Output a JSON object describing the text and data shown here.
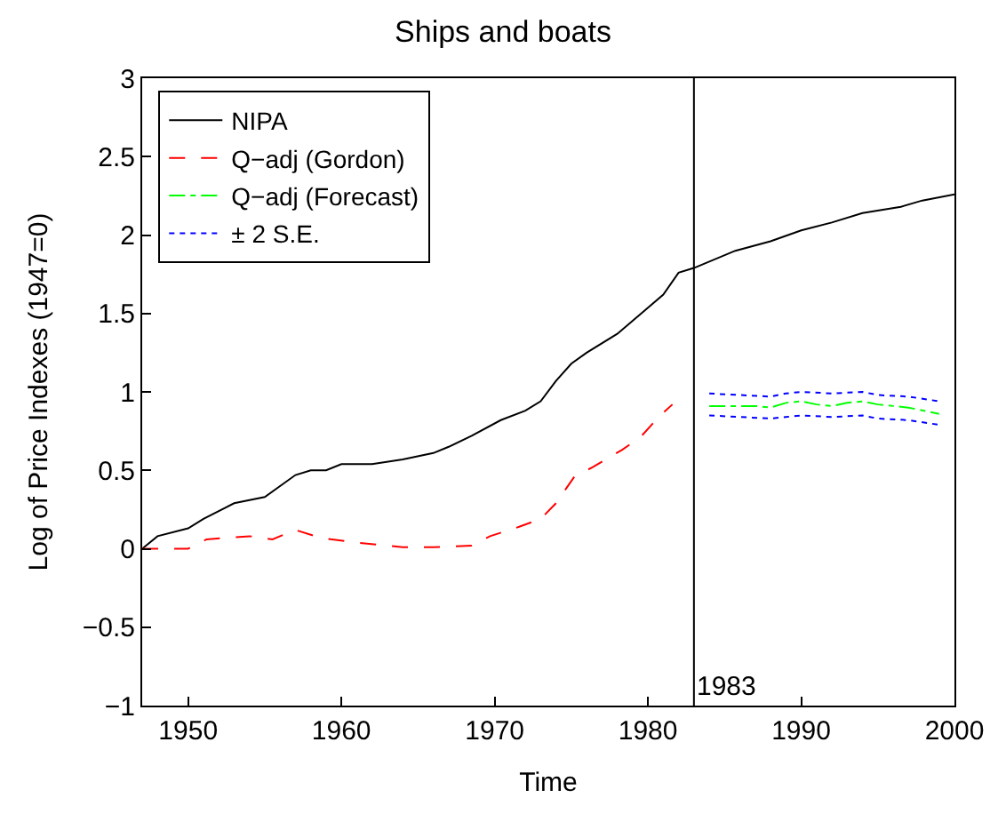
{
  "chart_data": {
    "type": "line",
    "title": "Ships and boats",
    "xlabel": "Time",
    "ylabel": "Log of Price Indexes (1947=0)",
    "xlim": [
      1947,
      2000
    ],
    "xticks": [
      1950,
      1960,
      1970,
      1980,
      1990,
      2000
    ],
    "ylim": [
      -1,
      3
    ],
    "yticks": [
      {
        "value": -1,
        "label": "−1"
      },
      {
        "value": -0.5,
        "label": "−0.5"
      },
      0,
      0.5,
      1,
      1.5,
      2,
      2.5,
      3
    ],
    "legend": "top left",
    "marker": "none",
    "ref_lines": [
      {
        "axis": "x",
        "value": 1983,
        "label": "1983",
        "color": "#000000"
      }
    ],
    "series": [
      {
        "name": "NIPA",
        "color": "#000000",
        "line_style": "solid",
        "x": [
          1947,
          1948,
          1950,
          1951,
          1953,
          1955,
          1957,
          1958,
          1959,
          1960,
          1962,
          1964,
          1966,
          1967,
          1968.5,
          1970.4,
          1972,
          1973,
          1974,
          1975,
          1976,
          1978,
          1979.8,
          1981,
          1982,
          1983,
          1985.7,
          1988,
          1990,
          1992,
          1994,
          1996.5,
          1997.9,
          2000
        ],
        "values": [
          0,
          0.08,
          0.13,
          0.19,
          0.29,
          0.33,
          0.47,
          0.5,
          0.5,
          0.54,
          0.54,
          0.57,
          0.61,
          0.65,
          0.72,
          0.82,
          0.88,
          0.94,
          1.07,
          1.18,
          1.25,
          1.37,
          1.52,
          1.62,
          1.76,
          1.79,
          1.9,
          1.96,
          2.03,
          2.08,
          2.14,
          2.18,
          2.22,
          2.26
        ]
      },
      {
        "name": "Q−adj (Gordon)",
        "color": "#ff0000",
        "line_style": "dashed",
        "x": [
          1947,
          1948.5,
          1950,
          1951.2,
          1954,
          1955.5,
          1957,
          1958.6,
          1960.9,
          1964,
          1966,
          1968.5,
          1969.7,
          1971.6,
          1973,
          1974,
          1975.2,
          1976.4,
          1978.3,
          1979.5,
          1980.7,
          1981.6
        ],
        "values": [
          0,
          0,
          0,
          0.06,
          0.08,
          0.06,
          0.12,
          0.07,
          0.04,
          0.01,
          0.01,
          0.02,
          0.08,
          0.14,
          0.19,
          0.29,
          0.46,
          0.52,
          0.63,
          0.71,
          0.84,
          0.92
        ]
      },
      {
        "name": "Q−adj (Forecast)",
        "color": "#00ff00",
        "line_style": "dashdot",
        "x": [
          1984,
          1985,
          1987,
          1988,
          1989,
          1990,
          1991,
          1992,
          1993,
          1994,
          1995,
          1996,
          1997,
          1998,
          1999
        ],
        "values": [
          0.91,
          0.91,
          0.91,
          0.9,
          0.93,
          0.94,
          0.92,
          0.91,
          0.93,
          0.94,
          0.92,
          0.91,
          0.9,
          0.88,
          0.86
        ]
      },
      {
        "name": "± 2 S.E.",
        "color": "#0000ff",
        "line_style": "dotted",
        "x": [
          1984,
          1986,
          1988,
          1989,
          1990,
          1992,
          1994,
          1995,
          1997,
          1999
        ],
        "values": [
          0.99,
          0.98,
          0.97,
          0.99,
          1.0,
          0.99,
          1.0,
          0.98,
          0.97,
          0.94
        ]
      },
      {
        "color": "#0000ff",
        "line_style": "dotted",
        "x": [
          1984,
          1986,
          1988,
          1989,
          1990,
          1992,
          1994,
          1995,
          1997,
          1999
        ],
        "values": [
          0.85,
          0.84,
          0.83,
          0.84,
          0.85,
          0.84,
          0.85,
          0.83,
          0.82,
          0.79
        ]
      }
    ]
  }
}
